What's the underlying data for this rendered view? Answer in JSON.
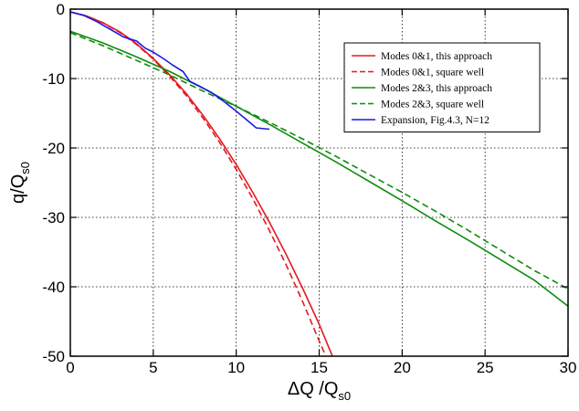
{
  "chart_data": {
    "type": "line",
    "xlabel": {
      "main": "ΔQ /Q",
      "sub": "s0"
    },
    "ylabel": {
      "main": "q/Q",
      "sub": "s0"
    },
    "xlim": [
      0,
      30
    ],
    "ylim": [
      -50,
      0
    ],
    "xticks": [
      0,
      5,
      10,
      15,
      20,
      25,
      30
    ],
    "yticks": [
      0,
      -10,
      -20,
      -30,
      -40,
      -50
    ],
    "grid": true,
    "legend_position": "top-right",
    "series": [
      {
        "name": "Modes 0&1, this approach",
        "color": "#e8161f",
        "dash": "solid",
        "x": [
          0,
          1,
          2,
          3,
          4,
          5,
          6,
          7,
          8,
          9,
          10,
          11,
          12,
          13,
          14,
          15,
          15.8
        ],
        "y": [
          -0.4,
          -1.0,
          -2.0,
          -3.3,
          -5.0,
          -7.1,
          -9.5,
          -12.2,
          -15.3,
          -18.7,
          -22.4,
          -26.4,
          -30.7,
          -35.3,
          -40.2,
          -45.4,
          -50
        ]
      },
      {
        "name": "Modes 0&1, square well",
        "color": "#e8161f",
        "dash": "dashed",
        "x": [
          0,
          1,
          2,
          3,
          4,
          5,
          6,
          7,
          8,
          9,
          10,
          11,
          12,
          13,
          14,
          15,
          15.4
        ],
        "y": [
          -0.4,
          -1.0,
          -2.0,
          -3.4,
          -5.1,
          -7.2,
          -9.7,
          -12.5,
          -15.7,
          -19.2,
          -23.1,
          -27.3,
          -31.9,
          -36.8,
          -42.1,
          -47.8,
          -50
        ]
      },
      {
        "name": "Modes 2&3, this approach",
        "color": "#0e8c0e",
        "dash": "solid",
        "x": [
          0,
          2,
          4,
          6,
          8,
          10,
          12,
          14,
          16,
          18,
          20,
          22,
          24,
          26,
          28,
          30
        ],
        "y": [
          -3.2,
          -4.9,
          -6.9,
          -9.0,
          -11.4,
          -14.0,
          -16.6,
          -19.3,
          -22.0,
          -24.8,
          -27.6,
          -30.5,
          -33.3,
          -36.2,
          -39.1,
          -42.8
        ]
      },
      {
        "name": "Modes 2&3, square well",
        "color": "#0e8c0e",
        "dash": "dashed",
        "x": [
          0,
          2,
          4,
          6,
          8,
          10,
          12,
          14,
          16,
          18,
          20,
          22,
          24,
          26,
          28,
          30
        ],
        "y": [
          -3.4,
          -5.3,
          -7.4,
          -9.5,
          -11.8,
          -14.0,
          -16.3,
          -18.7,
          -21.2,
          -23.8,
          -26.4,
          -29.1,
          -31.9,
          -34.8,
          -37.7,
          -40.3
        ]
      },
      {
        "name": "Expansion, Fig.4.3, N=12",
        "color": "#1a1ae6",
        "dash": "solid",
        "x": [
          0,
          0.8,
          1.6,
          2.4,
          3.2,
          4.0,
          4.5,
          5.0,
          5.6,
          6.2,
          6.8,
          7.2,
          7.8,
          8.5,
          9.2,
          10.0,
          10.6,
          11.2,
          12.0
        ],
        "y": [
          -0.4,
          -0.9,
          -1.8,
          -2.9,
          -4.0,
          -4.6,
          -5.6,
          -6.2,
          -7.1,
          -8.1,
          -9.0,
          -10.4,
          -11.1,
          -12.0,
          -13.2,
          -14.7,
          -15.9,
          -17.1,
          -17.3
        ]
      }
    ]
  }
}
